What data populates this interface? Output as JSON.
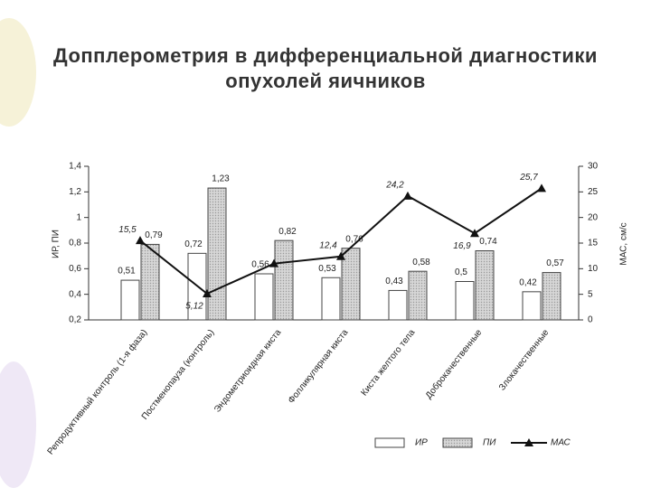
{
  "title": "Допплерометрия в дифференциальной диагностики опухолей яичников",
  "chart_data": {
    "type": "bar",
    "categories": [
      "Репродуктивный контроль (1-я фаза)",
      "Постменопауза (контроль)",
      "Эндометриоидная киста",
      "Фолликулярная киста",
      "Киста желтого тела",
      "Доброкачественные",
      "Злокачественные"
    ],
    "series": [
      {
        "name": "ИР",
        "color": "#ffffff",
        "values": [
          0.51,
          0.72,
          0.56,
          0.53,
          0.43,
          0.5,
          0.42
        ],
        "value_labels": [
          "0,51",
          "0,72",
          "0,56",
          "0,53",
          "0,43",
          "0,5",
          "0,42"
        ]
      },
      {
        "name": "ПИ",
        "color": "#cfcfcf",
        "values": [
          0.79,
          1.23,
          0.82,
          0.76,
          0.58,
          0.74,
          0.57
        ],
        "value_labels": [
          "0,79",
          "1,23",
          "0,82",
          "0,76",
          "0,58",
          "0,74",
          "0,57"
        ]
      },
      {
        "name": "МАС",
        "type": "line",
        "axis": "y2",
        "color": "#111111",
        "values": [
          15.5,
          5.12,
          11,
          12.4,
          24.2,
          16.9,
          25.7
        ],
        "value_labels": [
          "15,5",
          "5,12",
          null,
          "12,4",
          "24,2",
          "16,9",
          "25,7"
        ]
      }
    ],
    "ylabel": "ИР, ПИ",
    "y2label": "МАС, см/с",
    "ylim": [
      0.2,
      1.4
    ],
    "yticks": [
      {
        "value": 0.2,
        "label": "0,2"
      },
      {
        "value": 0.4,
        "label": "0,4"
      },
      {
        "value": 0.6,
        "label": "0,6"
      },
      {
        "value": 0.8,
        "label": "0,8"
      },
      1,
      {
        "value": 1.2,
        "label": "1,2"
      },
      {
        "value": 1.4,
        "label": "1,4"
      }
    ],
    "y2lim": [
      0,
      30
    ],
    "y2ticks": [
      0,
      5,
      10,
      15,
      20,
      25,
      30
    ]
  }
}
